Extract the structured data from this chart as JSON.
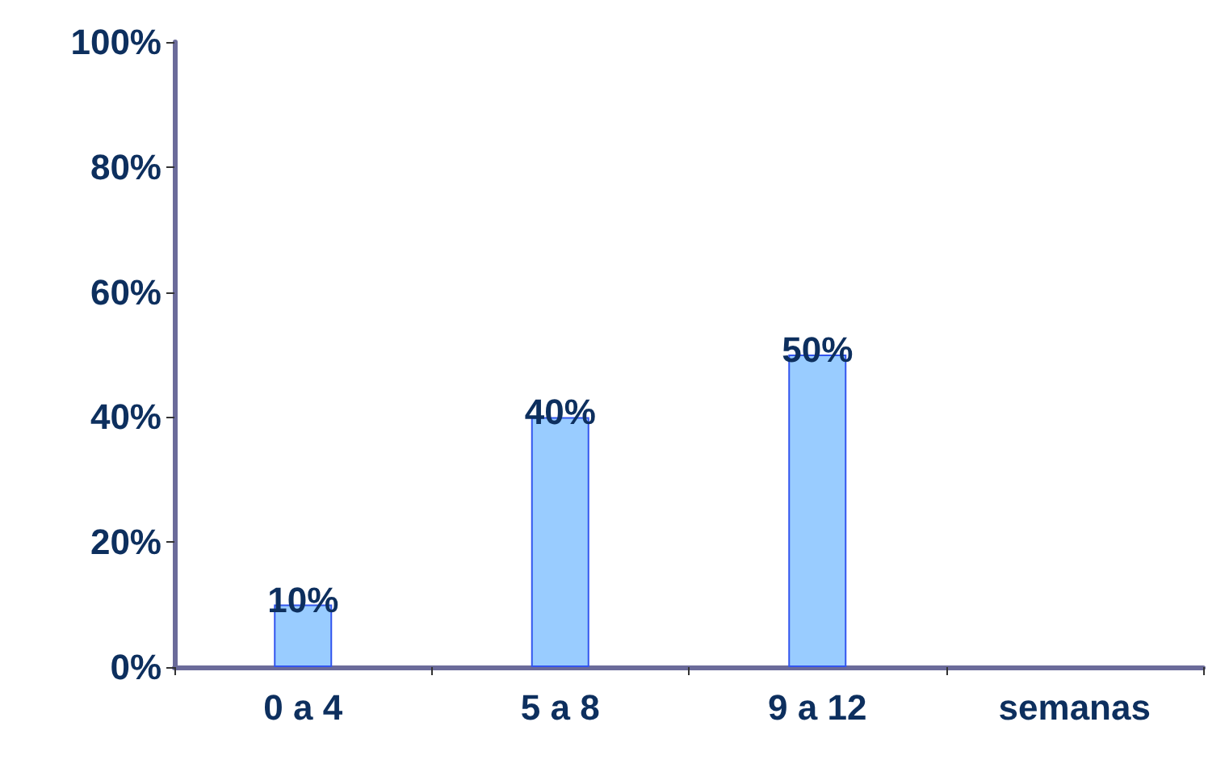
{
  "chart_data": {
    "type": "bar",
    "categories": [
      "0 a 4",
      "5 a 8",
      "9 a 12",
      "semanas"
    ],
    "values": [
      10,
      40,
      50,
      null
    ],
    "value_labels": [
      "10%",
      "40%",
      "50%",
      null
    ],
    "color": "#99ccff",
    "ylim": [
      0,
      100
    ],
    "yticks": [
      {
        "value": 0,
        "label": "0%"
      },
      {
        "value": 20,
        "label": "20%"
      },
      {
        "value": 40,
        "label": "40%"
      },
      {
        "value": 60,
        "label": "60%"
      },
      {
        "value": 80,
        "label": "80%"
      },
      {
        "value": 100,
        "label": "100%"
      }
    ],
    "grid": false
  }
}
